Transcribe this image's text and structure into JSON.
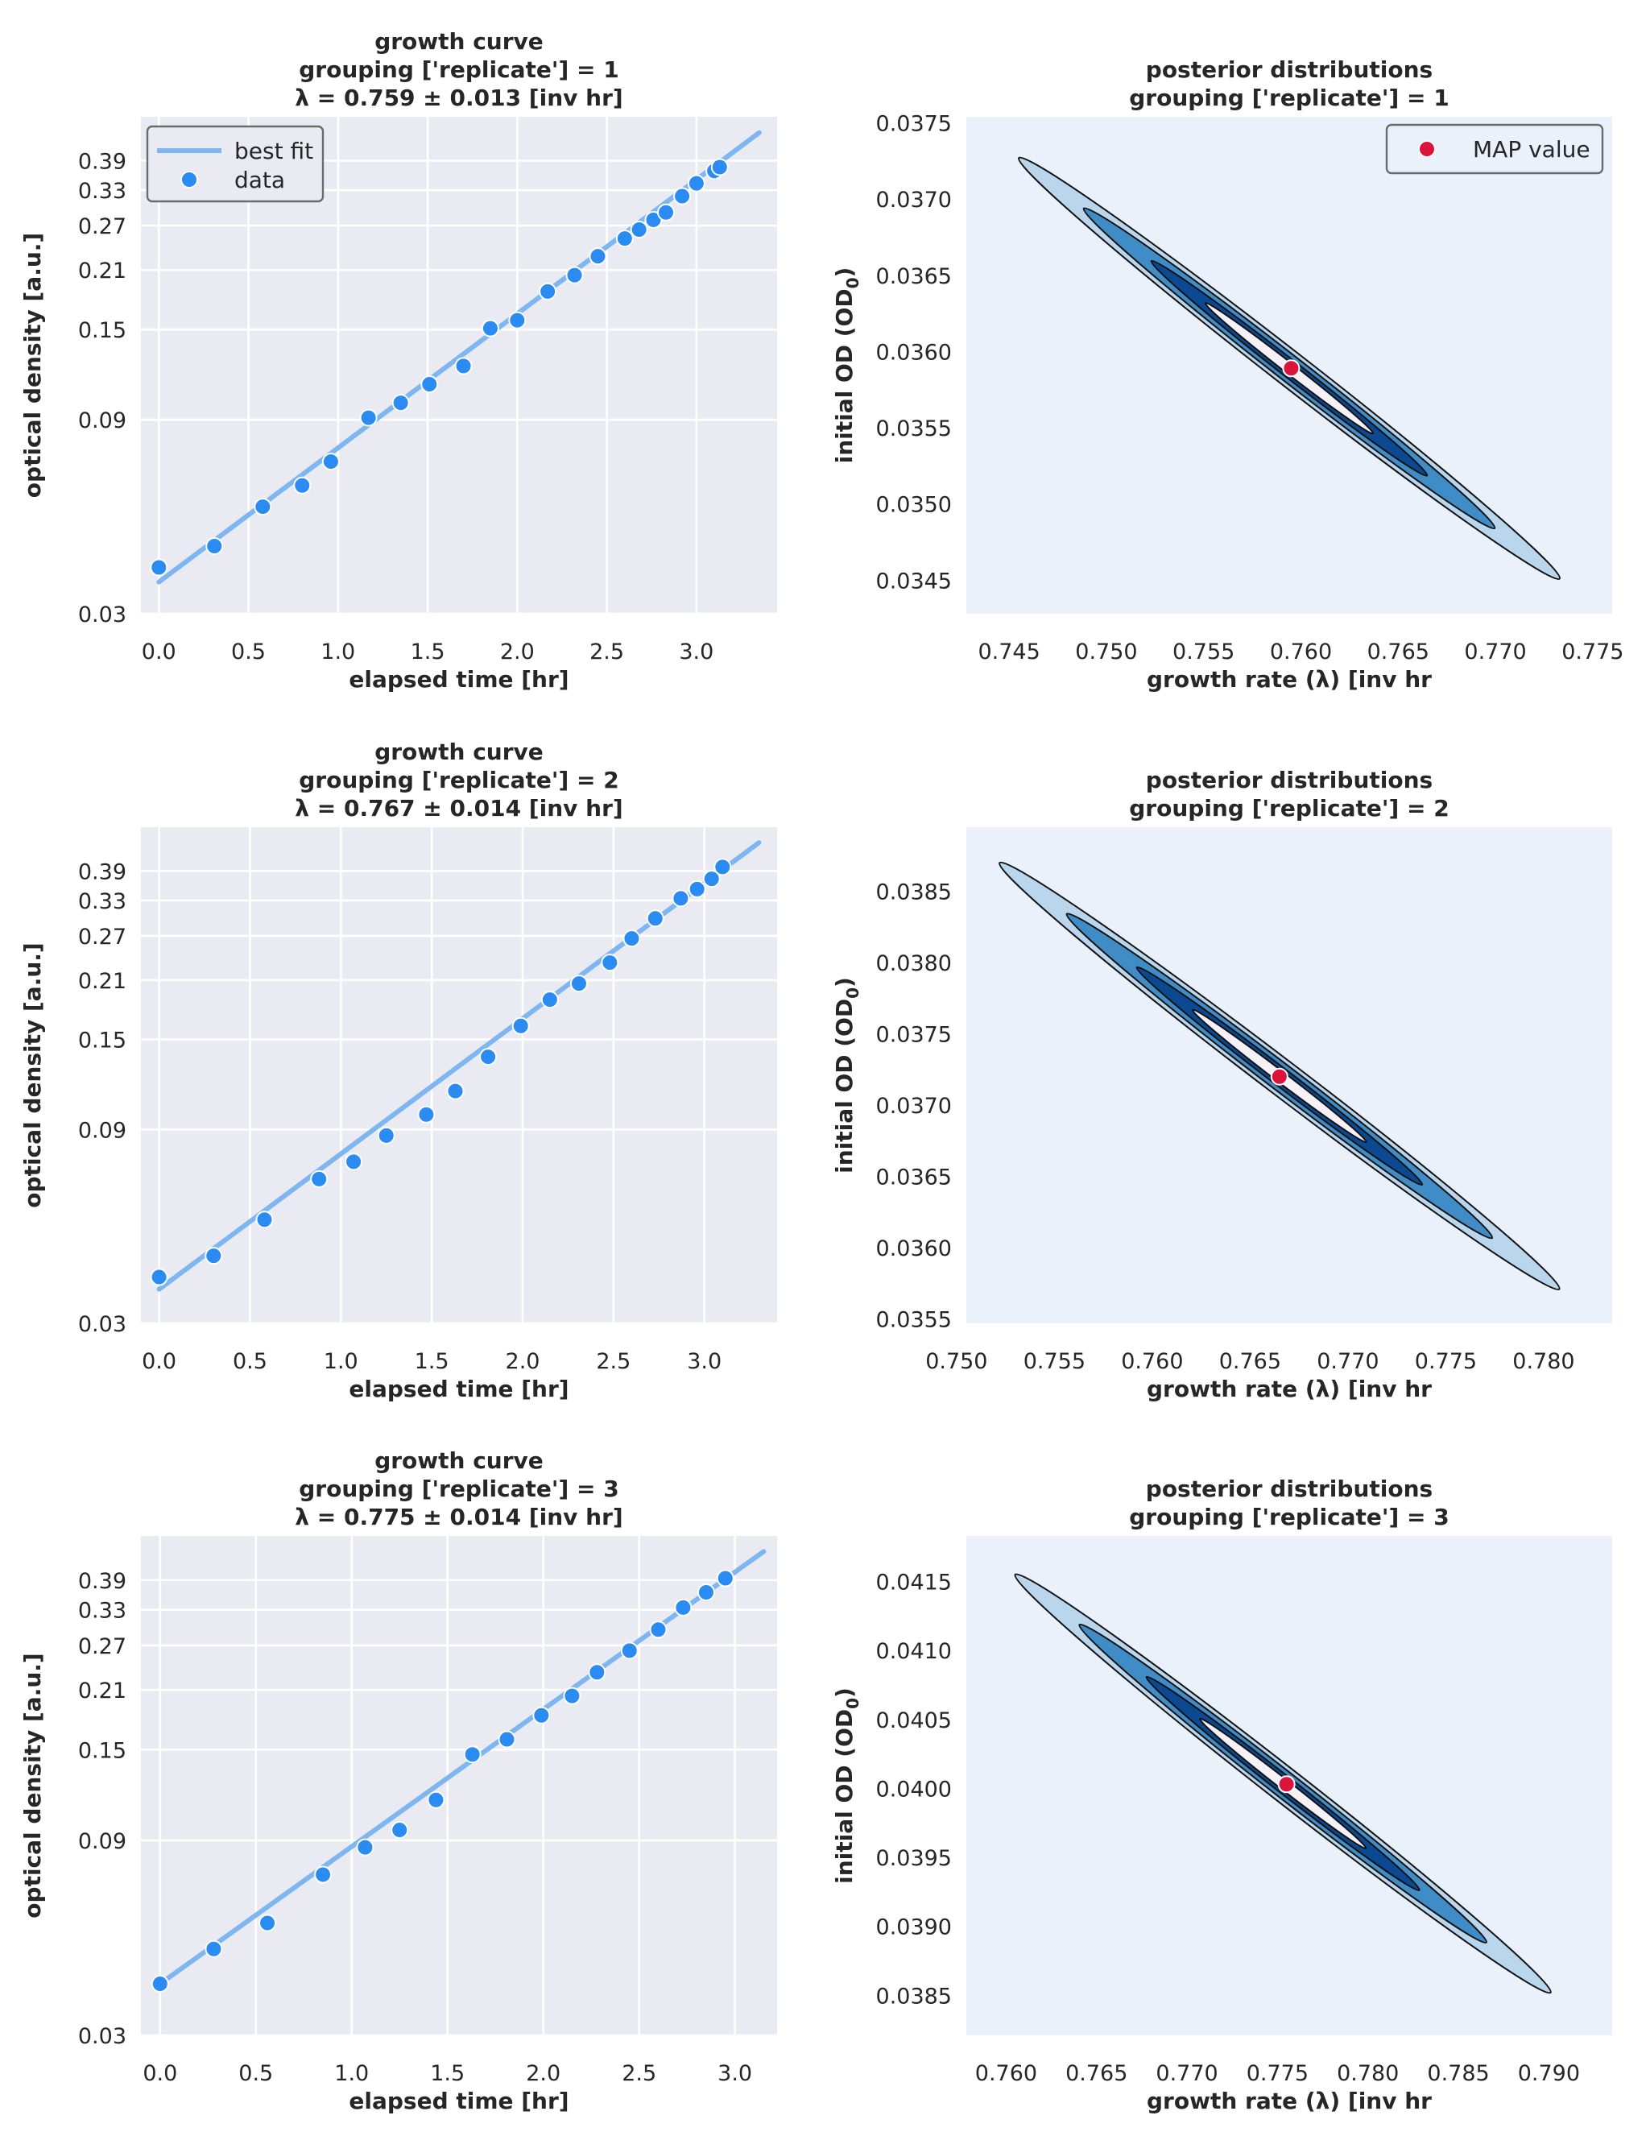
{
  "chart_data": [
    {
      "type": "scatter",
      "title": [
        "growth curve",
        "grouping ['replicate'] = 1",
        "λ = 0.759 ± 0.013 [inv hr]"
      ],
      "xlabel": "elapsed time [hr]",
      "ylabel": "optical density [a.u.]",
      "xlim": [
        -0.1,
        3.45
      ],
      "ylim": [
        0.03,
        0.5
      ],
      "yscale": "log",
      "xticks": [
        0,
        0.5,
        1,
        1.5,
        2,
        2.5,
        3
      ],
      "xtick_labels": [
        "0.0",
        "0.5",
        "1.0",
        "1.5",
        "2.0",
        "2.5",
        "3.0"
      ],
      "yticks": [
        0.03,
        0.09,
        0.15,
        0.21,
        0.27,
        0.33,
        0.39
      ],
      "ytick_labels": [
        "0.03",
        "0.09",
        "0.15",
        "0.21",
        "0.27",
        "0.33",
        "0.39"
      ],
      "grid": true,
      "legend": {
        "position": "upper-left",
        "entries": [
          "best fit",
          "data"
        ]
      },
      "series": [
        {
          "name": "best fit",
          "kind": "line",
          "color": "#7db6f0",
          "x": [
            0.0,
            3.35
          ],
          "y": [
            0.0359,
            0.457
          ]
        },
        {
          "name": "data",
          "kind": "scatter",
          "color": "#2a8bf2",
          "x": [
            0.0,
            0.31,
            0.58,
            0.8,
            0.96,
            1.17,
            1.35,
            1.51,
            1.7,
            1.85,
            2.0,
            2.17,
            2.32,
            2.45,
            2.6,
            2.68,
            2.76,
            2.83,
            2.92,
            3.0,
            3.1,
            3.13
          ],
          "y": [
            0.039,
            0.044,
            0.055,
            0.062,
            0.071,
            0.091,
            0.099,
            0.11,
            0.122,
            0.151,
            0.158,
            0.186,
            0.204,
            0.227,
            0.251,
            0.264,
            0.279,
            0.291,
            0.319,
            0.343,
            0.368,
            0.376
          ]
        }
      ]
    },
    {
      "type": "contour",
      "title": [
        "posterior distributions",
        "grouping ['replicate']  = 1"
      ],
      "xlabel": "growth rate (λ) [inv hr",
      "ylabel": "initial OD (OD₀)",
      "ylabel_parts": [
        "initial OD (OD",
        "0",
        ")"
      ],
      "xlim": [
        0.7428,
        0.776
      ],
      "ylim": [
        0.03428,
        0.03754
      ],
      "xticks": [
        0.745,
        0.75,
        0.755,
        0.76,
        0.765,
        0.77,
        0.775
      ],
      "xtick_labels": [
        "0.745",
        "0.750",
        "0.755",
        "0.760",
        "0.765",
        "0.770",
        "0.775"
      ],
      "yticks": [
        0.0345,
        0.035,
        0.0355,
        0.036,
        0.0365,
        0.037,
        0.0375
      ],
      "ytick_labels": [
        "0.0345",
        "0.0350",
        "0.0355",
        "0.0360",
        "0.0365",
        "0.0370",
        "0.0375"
      ],
      "contour_colors": [
        "#b9d6ec",
        "#3f8cc7",
        "#0b4a92",
        "#f5f1f6"
      ],
      "contour_scales": [
        1.0,
        0.76,
        0.51,
        0.31
      ],
      "contour_half_width": 0.05,
      "endpoints": [
        [
          0.7455,
          0.03727
        ],
        [
          0.7733,
          0.03451
        ]
      ],
      "map_value": {
        "x": 0.7595,
        "y": 0.03589,
        "color": "#dc143c"
      },
      "legend": {
        "position": "upper-right",
        "entries": [
          "MAP value"
        ]
      }
    },
    {
      "type": "scatter",
      "title": [
        "growth curve",
        "grouping ['replicate'] = 2",
        "λ = 0.767 ± 0.014 [inv hr]"
      ],
      "xlabel": "elapsed time [hr]",
      "ylabel": "optical density [a.u.]",
      "xlim": [
        -0.1,
        3.4
      ],
      "ylim": [
        0.03,
        0.5
      ],
      "yscale": "log",
      "xticks": [
        0,
        0.5,
        1,
        1.5,
        2,
        2.5,
        3
      ],
      "xtick_labels": [
        "0.0",
        "0.5",
        "1.0",
        "1.5",
        "2.0",
        "2.5",
        "3.0"
      ],
      "yticks": [
        0.03,
        0.09,
        0.15,
        0.21,
        0.27,
        0.33,
        0.39
      ],
      "ytick_labels": [
        "0.03",
        "0.09",
        "0.15",
        "0.21",
        "0.27",
        "0.33",
        "0.39"
      ],
      "grid": true,
      "series": [
        {
          "name": "best fit",
          "kind": "line",
          "color": "#7db6f0",
          "x": [
            0.0,
            3.3
          ],
          "y": [
            0.0364,
            0.458
          ]
        },
        {
          "name": "data",
          "kind": "scatter",
          "color": "#2a8bf2",
          "x": [
            0.0,
            0.3,
            0.58,
            0.88,
            1.07,
            1.25,
            1.47,
            1.63,
            1.81,
            1.99,
            2.15,
            2.31,
            2.48,
            2.6,
            2.73,
            2.87,
            2.96,
            3.04,
            3.1
          ],
          "y": [
            0.039,
            0.044,
            0.054,
            0.068,
            0.075,
            0.087,
            0.098,
            0.112,
            0.136,
            0.162,
            0.188,
            0.206,
            0.232,
            0.266,
            0.298,
            0.334,
            0.352,
            0.373,
            0.399
          ]
        }
      ]
    },
    {
      "type": "contour",
      "title": [
        "posterior distributions",
        "grouping ['replicate']  = 2"
      ],
      "xlabel": "growth rate (λ) [inv hr",
      "ylabel": "initial OD (OD₀)",
      "ylabel_parts": [
        "initial OD (OD",
        "0",
        ")"
      ],
      "xlim": [
        0.7505,
        0.7835
      ],
      "ylim": [
        0.03547,
        0.03895
      ],
      "xticks": [
        0.75,
        0.755,
        0.76,
        0.765,
        0.77,
        0.775,
        0.78
      ],
      "xtick_labels": [
        "0.750",
        "0.755",
        "0.760",
        "0.765",
        "0.770",
        "0.775",
        "0.780"
      ],
      "yticks": [
        0.0355,
        0.036,
        0.0365,
        0.037,
        0.0375,
        0.038,
        0.0385
      ],
      "ytick_labels": [
        "0.0355",
        "0.0360",
        "0.0365",
        "0.0370",
        "0.0375",
        "0.0380",
        "0.0385"
      ],
      "contour_colors": [
        "#b9d6ec",
        "#3f8cc7",
        "#0b4a92",
        "#f5f1f6"
      ],
      "contour_scales": [
        1.0,
        0.76,
        0.51,
        0.31
      ],
      "contour_half_width": 0.05,
      "endpoints": [
        [
          0.7522,
          0.0387
        ],
        [
          0.7808,
          0.03571
        ]
      ],
      "map_value": {
        "x": 0.7665,
        "y": 0.0372,
        "color": "#dc143c"
      }
    },
    {
      "type": "scatter",
      "title": [
        "growth curve",
        "grouping ['replicate'] = 3",
        "λ = 0.775 ± 0.014 [inv hr]"
      ],
      "xlabel": "elapsed time [hr]",
      "ylabel": "optical density [a.u.]",
      "xlim": [
        -0.1,
        3.22
      ],
      "ylim": [
        0.03,
        0.5
      ],
      "yscale": "log",
      "xticks": [
        0,
        0.5,
        1,
        1.5,
        2,
        2.5,
        3
      ],
      "xtick_labels": [
        "0.0",
        "0.5",
        "1.0",
        "1.5",
        "2.0",
        "2.5",
        "3.0"
      ],
      "yticks": [
        0.03,
        0.09,
        0.15,
        0.21,
        0.27,
        0.33,
        0.39
      ],
      "ytick_labels": [
        "0.03",
        "0.09",
        "0.15",
        "0.21",
        "0.27",
        "0.33",
        "0.39"
      ],
      "grid": true,
      "series": [
        {
          "name": "best fit",
          "kind": "line",
          "color": "#7db6f0",
          "x": [
            0.0,
            3.15
          ],
          "y": [
            0.0401,
            0.458
          ]
        },
        {
          "name": "data",
          "kind": "scatter",
          "color": "#2a8bf2",
          "x": [
            0.0,
            0.28,
            0.56,
            0.85,
            1.07,
            1.25,
            1.44,
            1.63,
            1.81,
            1.99,
            2.15,
            2.28,
            2.45,
            2.6,
            2.73,
            2.85,
            2.95
          ],
          "y": [
            0.0401,
            0.0488,
            0.0565,
            0.0742,
            0.0865,
            0.0954,
            0.113,
            0.146,
            0.159,
            0.182,
            0.203,
            0.232,
            0.262,
            0.295,
            0.334,
            0.364,
            0.394
          ]
        }
      ]
    },
    {
      "type": "contour",
      "title": [
        "posterior distributions",
        "grouping ['replicate']  = 3"
      ],
      "xlabel": "growth rate (λ) [inv hr",
      "ylabel": "initial OD (OD₀)",
      "ylabel_parts": [
        "initial OD (OD",
        "0",
        ")"
      ],
      "xlim": [
        0.7578,
        0.7935
      ],
      "ylim": [
        0.03821,
        0.04183
      ],
      "xticks": [
        0.76,
        0.765,
        0.77,
        0.775,
        0.78,
        0.785,
        0.79
      ],
      "xtick_labels": [
        "0.760",
        "0.765",
        "0.770",
        "0.775",
        "0.780",
        "0.785",
        "0.790"
      ],
      "yticks": [
        0.0385,
        0.039,
        0.0395,
        0.04,
        0.0405,
        0.041,
        0.0415
      ],
      "ytick_labels": [
        "0.0385",
        "0.0390",
        "0.0395",
        "0.0400",
        "0.0405",
        "0.0410",
        "0.0415"
      ],
      "contour_colors": [
        "#b9d6ec",
        "#3f8cc7",
        "#0b4a92",
        "#f5f1f6"
      ],
      "contour_scales": [
        1.0,
        0.76,
        0.51,
        0.31
      ],
      "contour_half_width": 0.05,
      "endpoints": [
        [
          0.7605,
          0.04155
        ],
        [
          0.7901,
          0.03852
        ]
      ],
      "map_value": {
        "x": 0.7755,
        "y": 0.04003,
        "color": "#dc143c"
      }
    }
  ]
}
